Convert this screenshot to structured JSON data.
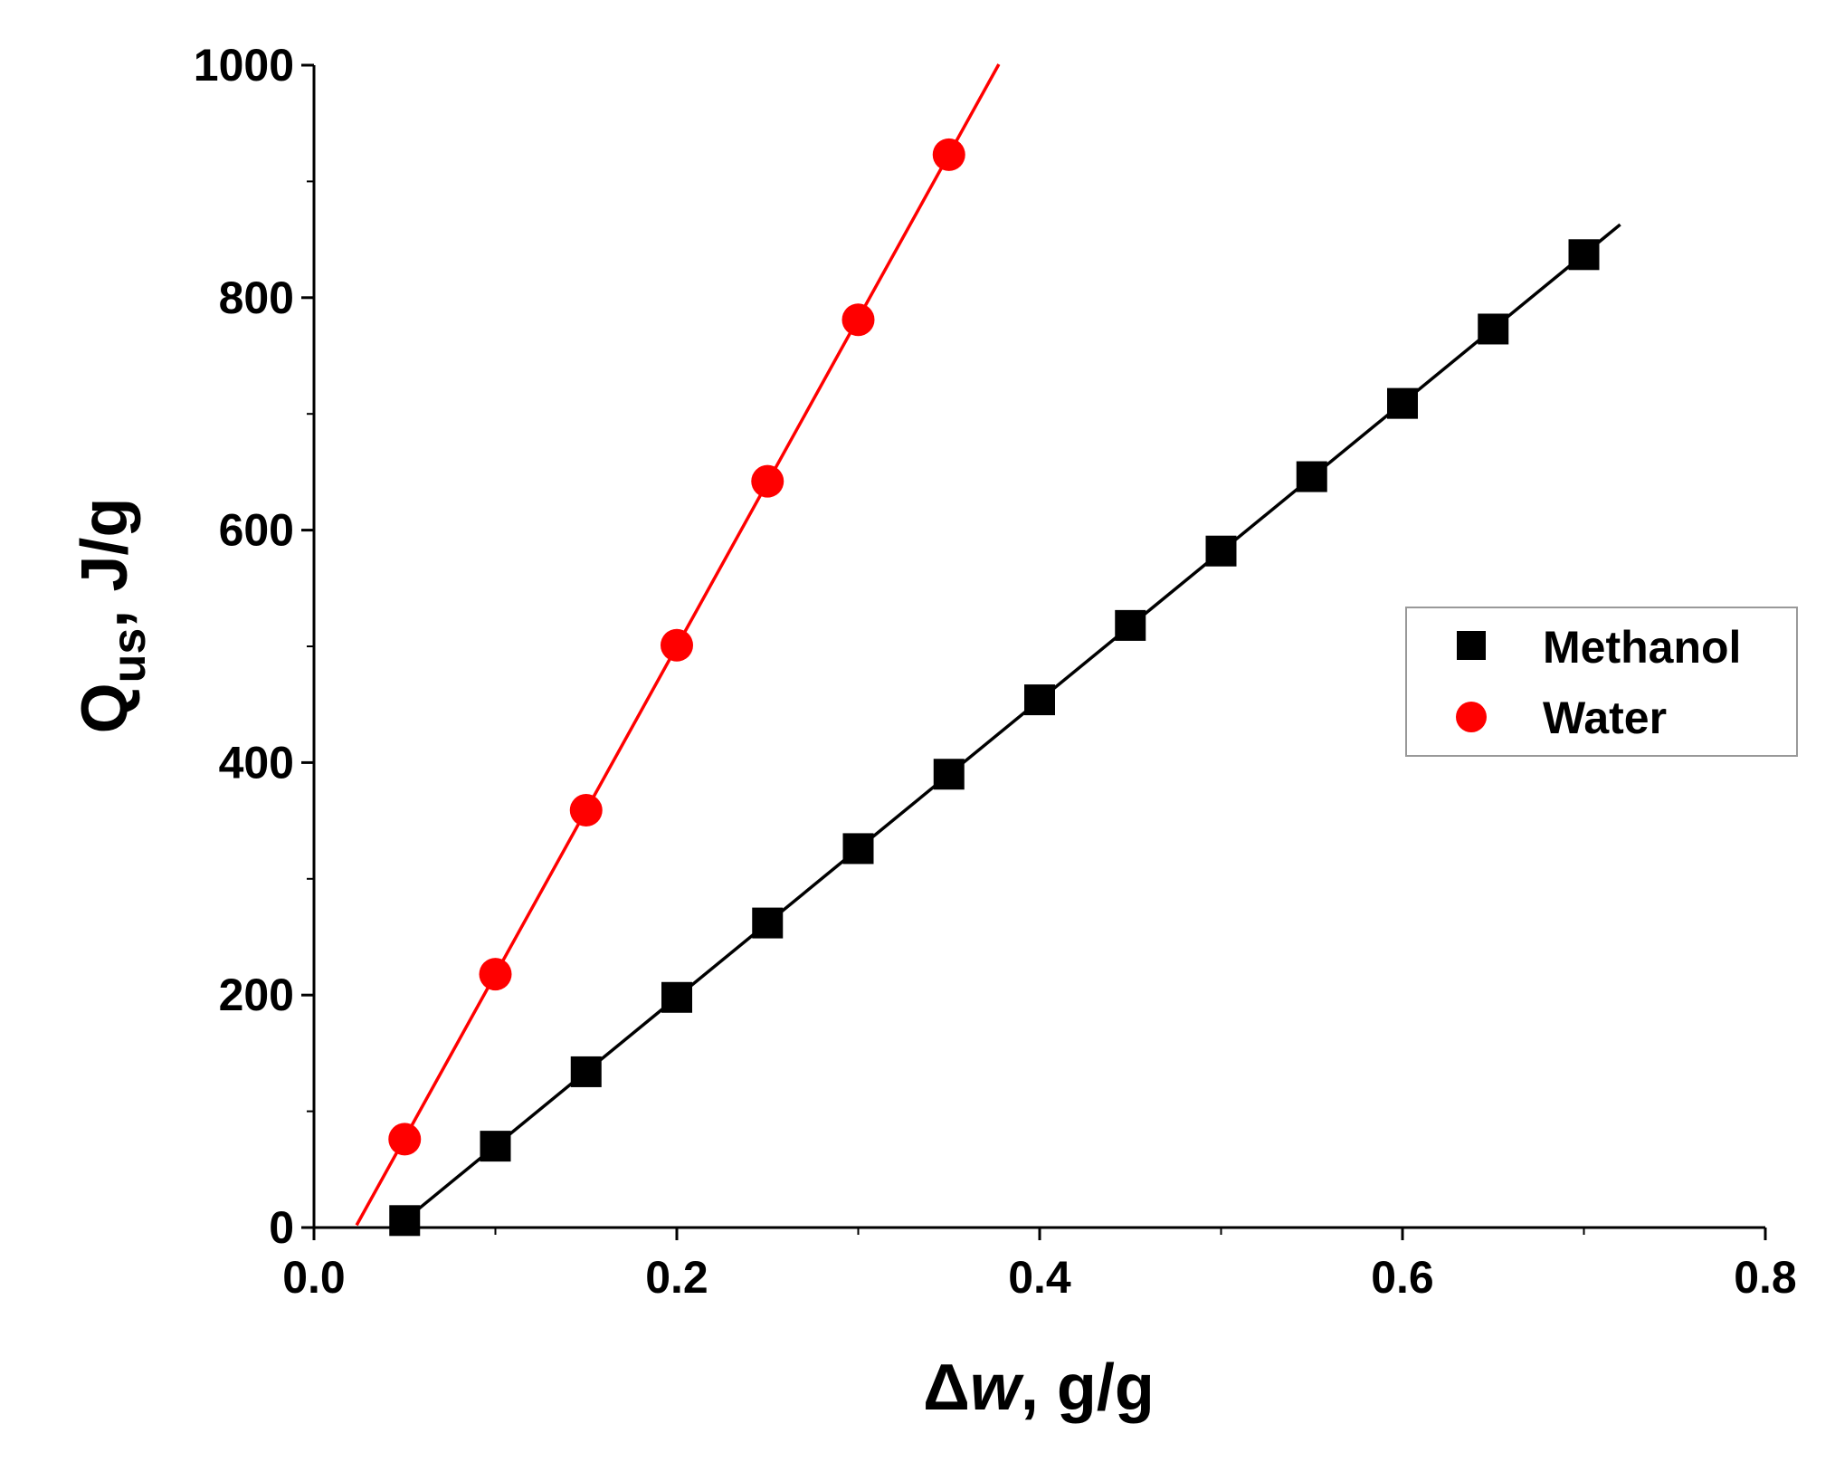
{
  "chart_data": {
    "type": "scatter",
    "title": "",
    "xlabel": {
      "symbol": "Δ",
      "variable": "w",
      "unit": ", g/g"
    },
    "ylabel": {
      "base": "Q",
      "subscript": "us",
      "unit": ", J/g"
    },
    "xlim": [
      0.0,
      0.8
    ],
    "ylim": [
      0,
      1000
    ],
    "x_ticks": [
      "0.0",
      "0.2",
      "0.4",
      "0.6",
      "0.8"
    ],
    "y_ticks": [
      "0",
      "200",
      "400",
      "600",
      "800",
      "1000"
    ],
    "grid": false,
    "legend_position": "right",
    "series": [
      {
        "name": "Methanol",
        "marker": "square",
        "color": "#000000",
        "x": [
          0.05,
          0.1,
          0.15,
          0.2,
          0.25,
          0.3,
          0.35,
          0.4,
          0.45,
          0.5,
          0.55,
          0.6,
          0.65,
          0.7
        ],
        "y": [
          6,
          70,
          134,
          198,
          262,
          326,
          390,
          454,
          518,
          582,
          646,
          709,
          773,
          837
        ],
        "fit": {
          "x_start": 0.0565,
          "x_end": 0.72
        }
      },
      {
        "name": "Water",
        "marker": "circle",
        "color": "#ff0000",
        "x": [
          0.05,
          0.1,
          0.15,
          0.2,
          0.25,
          0.3,
          0.35
        ],
        "y": [
          76,
          218,
          359,
          501,
          642,
          781,
          923
        ],
        "fit": {
          "x_start": 0.0235,
          "x_end": 0.3775
        }
      }
    ]
  }
}
